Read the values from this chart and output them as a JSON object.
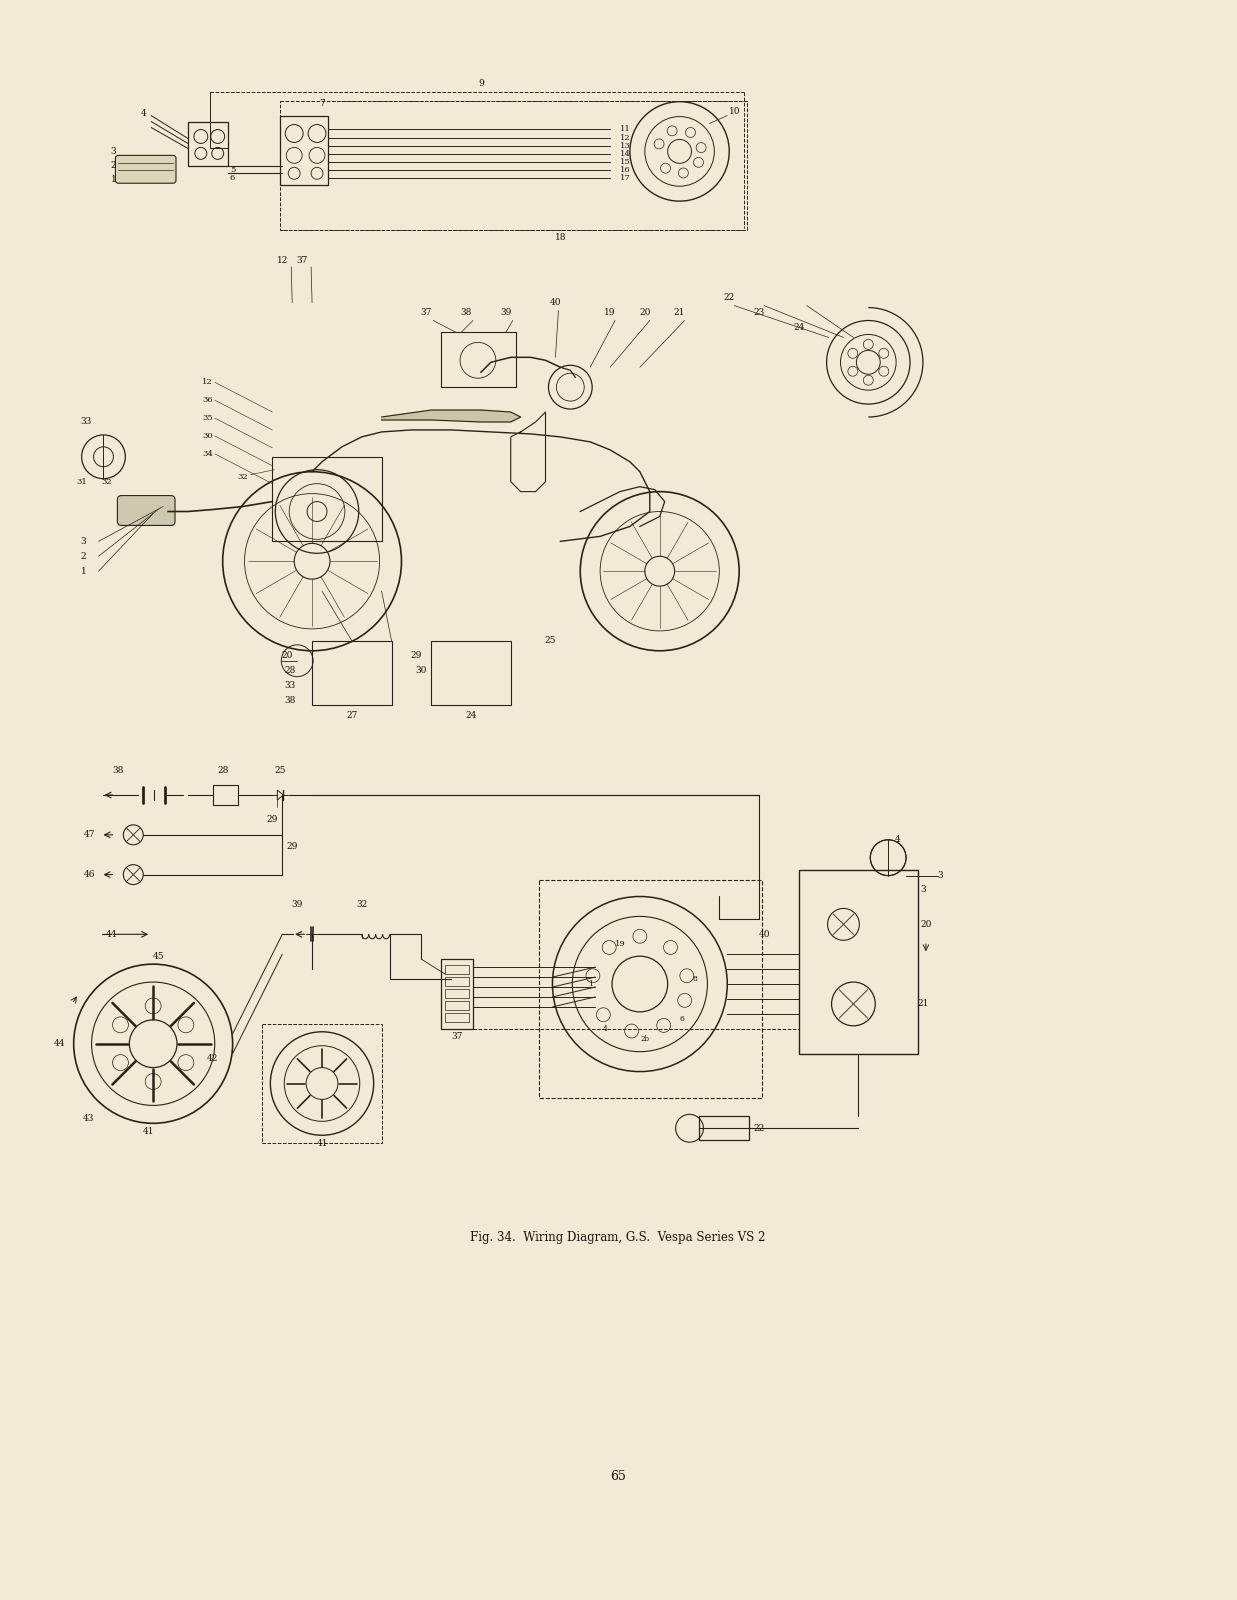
{
  "page_bg": "#f2ead6",
  "line_color": "#2a2218",
  "text_color": "#1a1410",
  "caption": "Fig. 34.  Wiring Diagram, G.S.  Vespa Series VS 2",
  "page_number": "65",
  "caption_fontsize": 8.5,
  "page_num_fontsize": 9,
  "fig_width": 12.37,
  "fig_height": 16.0,
  "dpi": 100
}
